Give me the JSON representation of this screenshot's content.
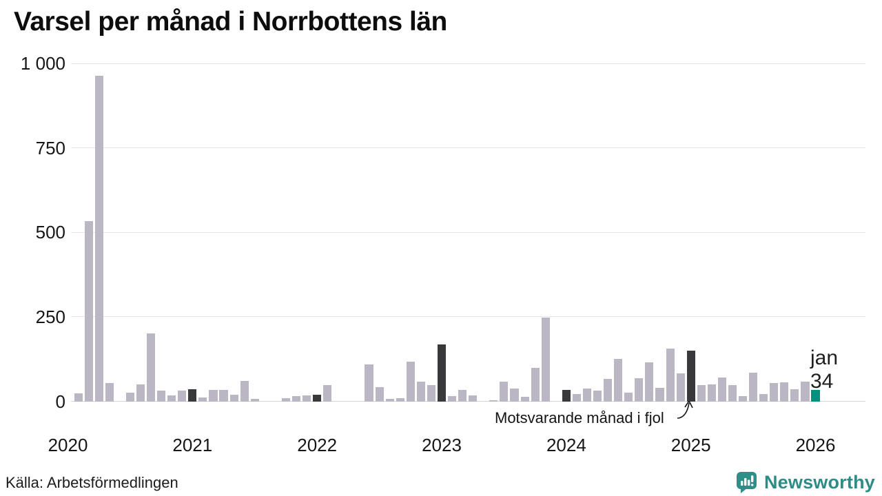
{
  "title": "Varsel per månad i Norrbottens län",
  "source": "Källa: Arbetsförmedlingen",
  "brand": {
    "name": "Newsworthy",
    "icon": "newsworthy-speech-bubble-chart-icon"
  },
  "annotation": {
    "label": "Motsvarande månad i fjol"
  },
  "latest_label": {
    "month": "jan",
    "value": "34"
  },
  "colors": {
    "bar_default": "#bab6c4",
    "bar_january": "#39383b",
    "bar_latest": "#00927e",
    "grid": "#e5e4e9",
    "zero_line": "#d4d3d9",
    "text": "#1a1a1a",
    "brand_teal": "#2e8b85"
  },
  "chart_data": {
    "type": "bar",
    "title": "Varsel per månad i Norrbottens län",
    "xlabel": "",
    "ylabel": "",
    "unit": "varsel (antal)",
    "x_start": "2020-01",
    "x_end": "2026-01",
    "months_per_year": 12,
    "x_axis_labels": [
      "2020",
      "2021",
      "2022",
      "2023",
      "2024",
      "2025",
      "2026"
    ],
    "y_ticks": [
      0,
      250,
      500,
      750,
      1000
    ],
    "y_tick_labels": [
      "0",
      "250",
      "500",
      "750",
      "1 000"
    ],
    "ylim": [
      0,
      1000
    ],
    "grid": "horizontal",
    "legend": "dark bars = january of each year (motsvarande månad i fjol); teal bar = latest month jan 2026 = 34",
    "values": [
      0,
      24,
      535,
      965,
      55,
      0,
      27,
      51,
      201,
      33,
      19,
      33,
      37,
      13,
      34,
      34,
      20,
      62,
      8,
      0,
      0,
      10,
      16,
      19,
      21,
      48,
      0,
      0,
      0,
      110,
      43,
      8,
      10,
      118,
      60,
      48,
      169,
      17,
      34,
      18,
      0,
      5,
      60,
      39,
      15,
      100,
      249,
      0,
      35,
      23,
      39,
      33,
      67,
      126,
      27,
      69,
      116,
      40,
      157,
      83,
      151,
      48,
      51,
      71,
      48,
      16,
      86,
      23,
      55,
      57,
      36,
      60,
      34
    ]
  }
}
